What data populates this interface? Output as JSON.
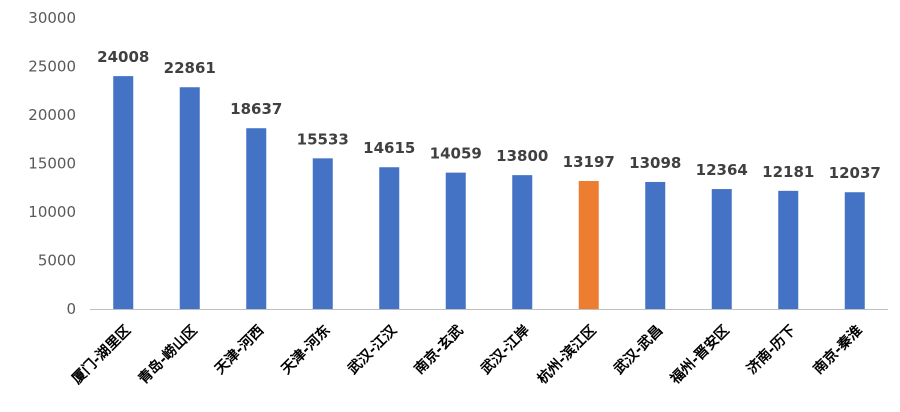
{
  "chart_data": {
    "type": "bar",
    "categories": [
      "厦门-湖里区",
      "青岛-崂山区",
      "天津-河西",
      "天津-河东",
      "武汉-江汉",
      "南京-玄武",
      "武汉-江岸",
      "杭州-滨江区",
      "武汉-武昌",
      "福州-晋安区",
      "济南-历下",
      "南京-秦淮"
    ],
    "values": [
      24008,
      22861,
      18637,
      15533,
      14615,
      14059,
      13800,
      13197,
      13098,
      12364,
      12181,
      12037
    ],
    "data_labels": [
      "24008",
      "22861",
      "18637",
      "15533",
      "14615",
      "14059",
      "13800",
      "13197",
      "13098",
      "12364",
      "12181",
      "12037"
    ],
    "yticks": [
      0,
      5000,
      10000,
      15000,
      20000,
      25000,
      30000
    ],
    "ylim": [
      0,
      30000
    ],
    "title": "",
    "xlabel": "",
    "ylabel": "",
    "grid": false,
    "legend": "none",
    "colors": {
      "default": "#4472C4",
      "highlight": "#ED7D31",
      "axis": "#BFBFBF"
    },
    "highlight_index": 7
  }
}
